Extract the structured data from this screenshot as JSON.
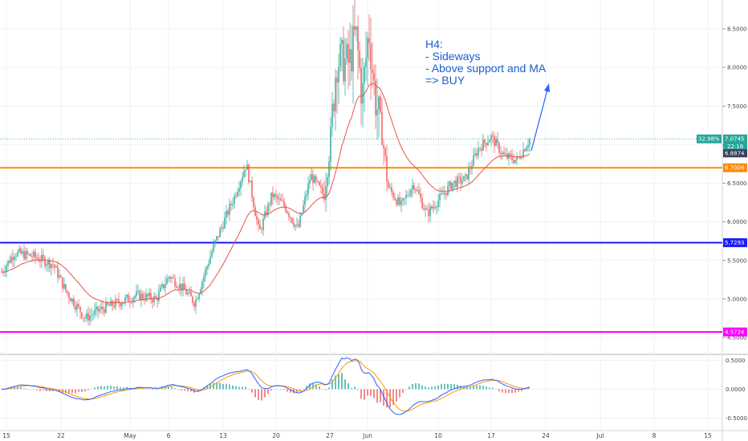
{
  "chart_data": [
    {
      "type": "candlestick",
      "timeframe": "H4",
      "y_ticks": [
        "8.5000",
        "8.0000",
        "7.5000",
        "7.0000",
        "6.5000",
        "6.0000",
        "5.5000",
        "5.0000",
        "4.5000"
      ],
      "ylim": [
        4.45,
        8.75
      ],
      "x_ticks": [
        "15",
        "22",
        "May",
        "6",
        "13",
        "20",
        "27",
        "Jun",
        "10",
        "17",
        "24",
        "Jul",
        "8",
        "15"
      ],
      "horizontal_levels": [
        {
          "value": 6.7004,
          "label": "6.7004",
          "color": "#ff8c00"
        },
        {
          "value": 5.7293,
          "label": "5.7293",
          "color": "#1a1aff"
        },
        {
          "value": 4.5724,
          "label": "4.5724",
          "color": "#ff00ff"
        }
      ],
      "last_price": {
        "value": 7.0745,
        "label": "7.0745",
        "countdown": "22:16",
        "change_label": "32.98%"
      },
      "ma_price_tag": {
        "value": 6.8874,
        "label": "6.8874"
      },
      "price_path": [
        {
          "t": 0,
          "v": 5.35
        },
        {
          "t": 2,
          "v": 5.6
        },
        {
          "t": 5,
          "v": 5.55
        },
        {
          "t": 8,
          "v": 5.45
        },
        {
          "t": 10,
          "v": 5.1
        },
        {
          "t": 13,
          "v": 4.75
        },
        {
          "t": 15,
          "v": 4.85
        },
        {
          "t": 18,
          "v": 4.95
        },
        {
          "t": 21,
          "v": 5.05
        },
        {
          "t": 24,
          "v": 5.0
        },
        {
          "t": 26,
          "v": 5.3
        },
        {
          "t": 28,
          "v": 5.15
        },
        {
          "t": 30,
          "v": 4.95
        },
        {
          "t": 33,
          "v": 5.7
        },
        {
          "t": 36,
          "v": 6.3
        },
        {
          "t": 38,
          "v": 6.75
        },
        {
          "t": 40,
          "v": 5.85
        },
        {
          "t": 42,
          "v": 6.35
        },
        {
          "t": 44,
          "v": 6.2
        },
        {
          "t": 46,
          "v": 5.9
        },
        {
          "t": 48,
          "v": 6.6
        },
        {
          "t": 50,
          "v": 6.35
        },
        {
          "t": 51,
          "v": 7.0
        },
        {
          "t": 52,
          "v": 8.1
        },
        {
          "t": 54,
          "v": 8.05
        },
        {
          "t": 55,
          "v": 8.45
        },
        {
          "t": 56,
          "v": 7.6
        },
        {
          "t": 57,
          "v": 8.5
        },
        {
          "t": 58,
          "v": 7.6
        },
        {
          "t": 59,
          "v": 7.2
        },
        {
          "t": 60,
          "v": 6.45
        },
        {
          "t": 62,
          "v": 6.2
        },
        {
          "t": 64,
          "v": 6.5
        },
        {
          "t": 66,
          "v": 6.1
        },
        {
          "t": 68,
          "v": 6.3
        },
        {
          "t": 70,
          "v": 6.5
        },
        {
          "t": 72,
          "v": 6.55
        },
        {
          "t": 74,
          "v": 6.95
        },
        {
          "t": 76,
          "v": 7.1
        },
        {
          "t": 78,
          "v": 6.85
        },
        {
          "t": 80,
          "v": 6.8
        },
        {
          "t": 82,
          "v": 7.07
        }
      ],
      "macd_ticks": [
        "0.5000",
        "0.0000",
        "-0.5000"
      ],
      "macd_ylim": [
        -0.62,
        0.52
      ]
    }
  ],
  "annotation": {
    "lines": [
      "H4:",
      "- Sideways",
      "- Above support and MA",
      "=> BUY"
    ]
  },
  "colors": {
    "bull": "#26a69a",
    "bear": "#ef5350",
    "ma": "#e8534a",
    "macd": "#2962ff",
    "signal": "#ff9800",
    "note": "#1a5fd0"
  }
}
